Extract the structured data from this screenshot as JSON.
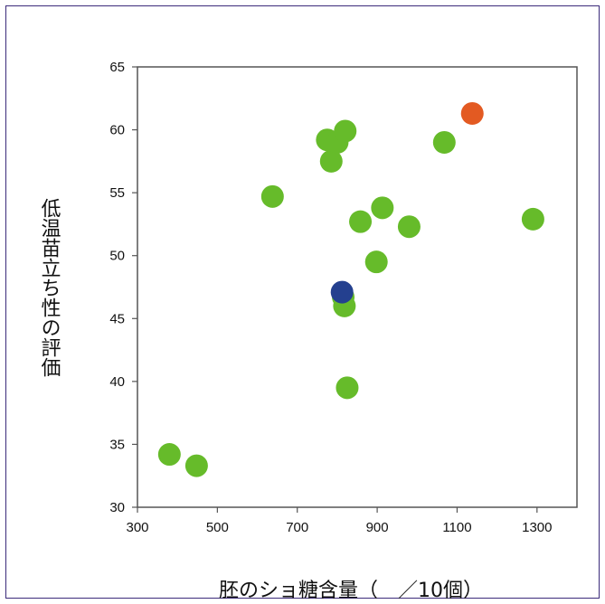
{
  "chart_data": {
    "type": "scatter",
    "title": "",
    "xlabel": "胚のショ糖含量（　／10個）",
    "ylabel": "低温苗立ち性の評価",
    "xlim": [
      300,
      1400
    ],
    "ylim": [
      30,
      65
    ],
    "xticks": [
      300,
      500,
      700,
      900,
      1100,
      1300
    ],
    "yticks": [
      30,
      35,
      40,
      45,
      50,
      55,
      60,
      65
    ],
    "grid": false,
    "legend": "none",
    "colors": {
      "default": "#66bb2a",
      "highlight_orange": "#e35a22",
      "highlight_blue": "#24408f"
    },
    "points": [
      {
        "x": 380,
        "y": 34.2,
        "color": "default"
      },
      {
        "x": 448,
        "y": 33.3,
        "color": "default"
      },
      {
        "x": 638,
        "y": 54.7,
        "color": "default"
      },
      {
        "x": 775,
        "y": 59.2,
        "color": "default"
      },
      {
        "x": 785,
        "y": 57.5,
        "color": "default"
      },
      {
        "x": 800,
        "y": 59.0,
        "color": "default"
      },
      {
        "x": 820,
        "y": 59.9,
        "color": "default"
      },
      {
        "x": 858,
        "y": 52.7,
        "color": "default"
      },
      {
        "x": 913,
        "y": 53.8,
        "color": "default"
      },
      {
        "x": 980,
        "y": 52.3,
        "color": "default"
      },
      {
        "x": 898,
        "y": 49.5,
        "color": "default"
      },
      {
        "x": 815,
        "y": 46.7,
        "color": "default"
      },
      {
        "x": 818,
        "y": 46.0,
        "color": "default"
      },
      {
        "x": 825,
        "y": 39.5,
        "color": "default"
      },
      {
        "x": 1068,
        "y": 59.0,
        "color": "default"
      },
      {
        "x": 1290,
        "y": 52.9,
        "color": "default"
      },
      {
        "x": 1138,
        "y": 61.3,
        "color": "highlight_orange"
      },
      {
        "x": 812,
        "y": 47.1,
        "color": "highlight_blue"
      }
    ]
  }
}
